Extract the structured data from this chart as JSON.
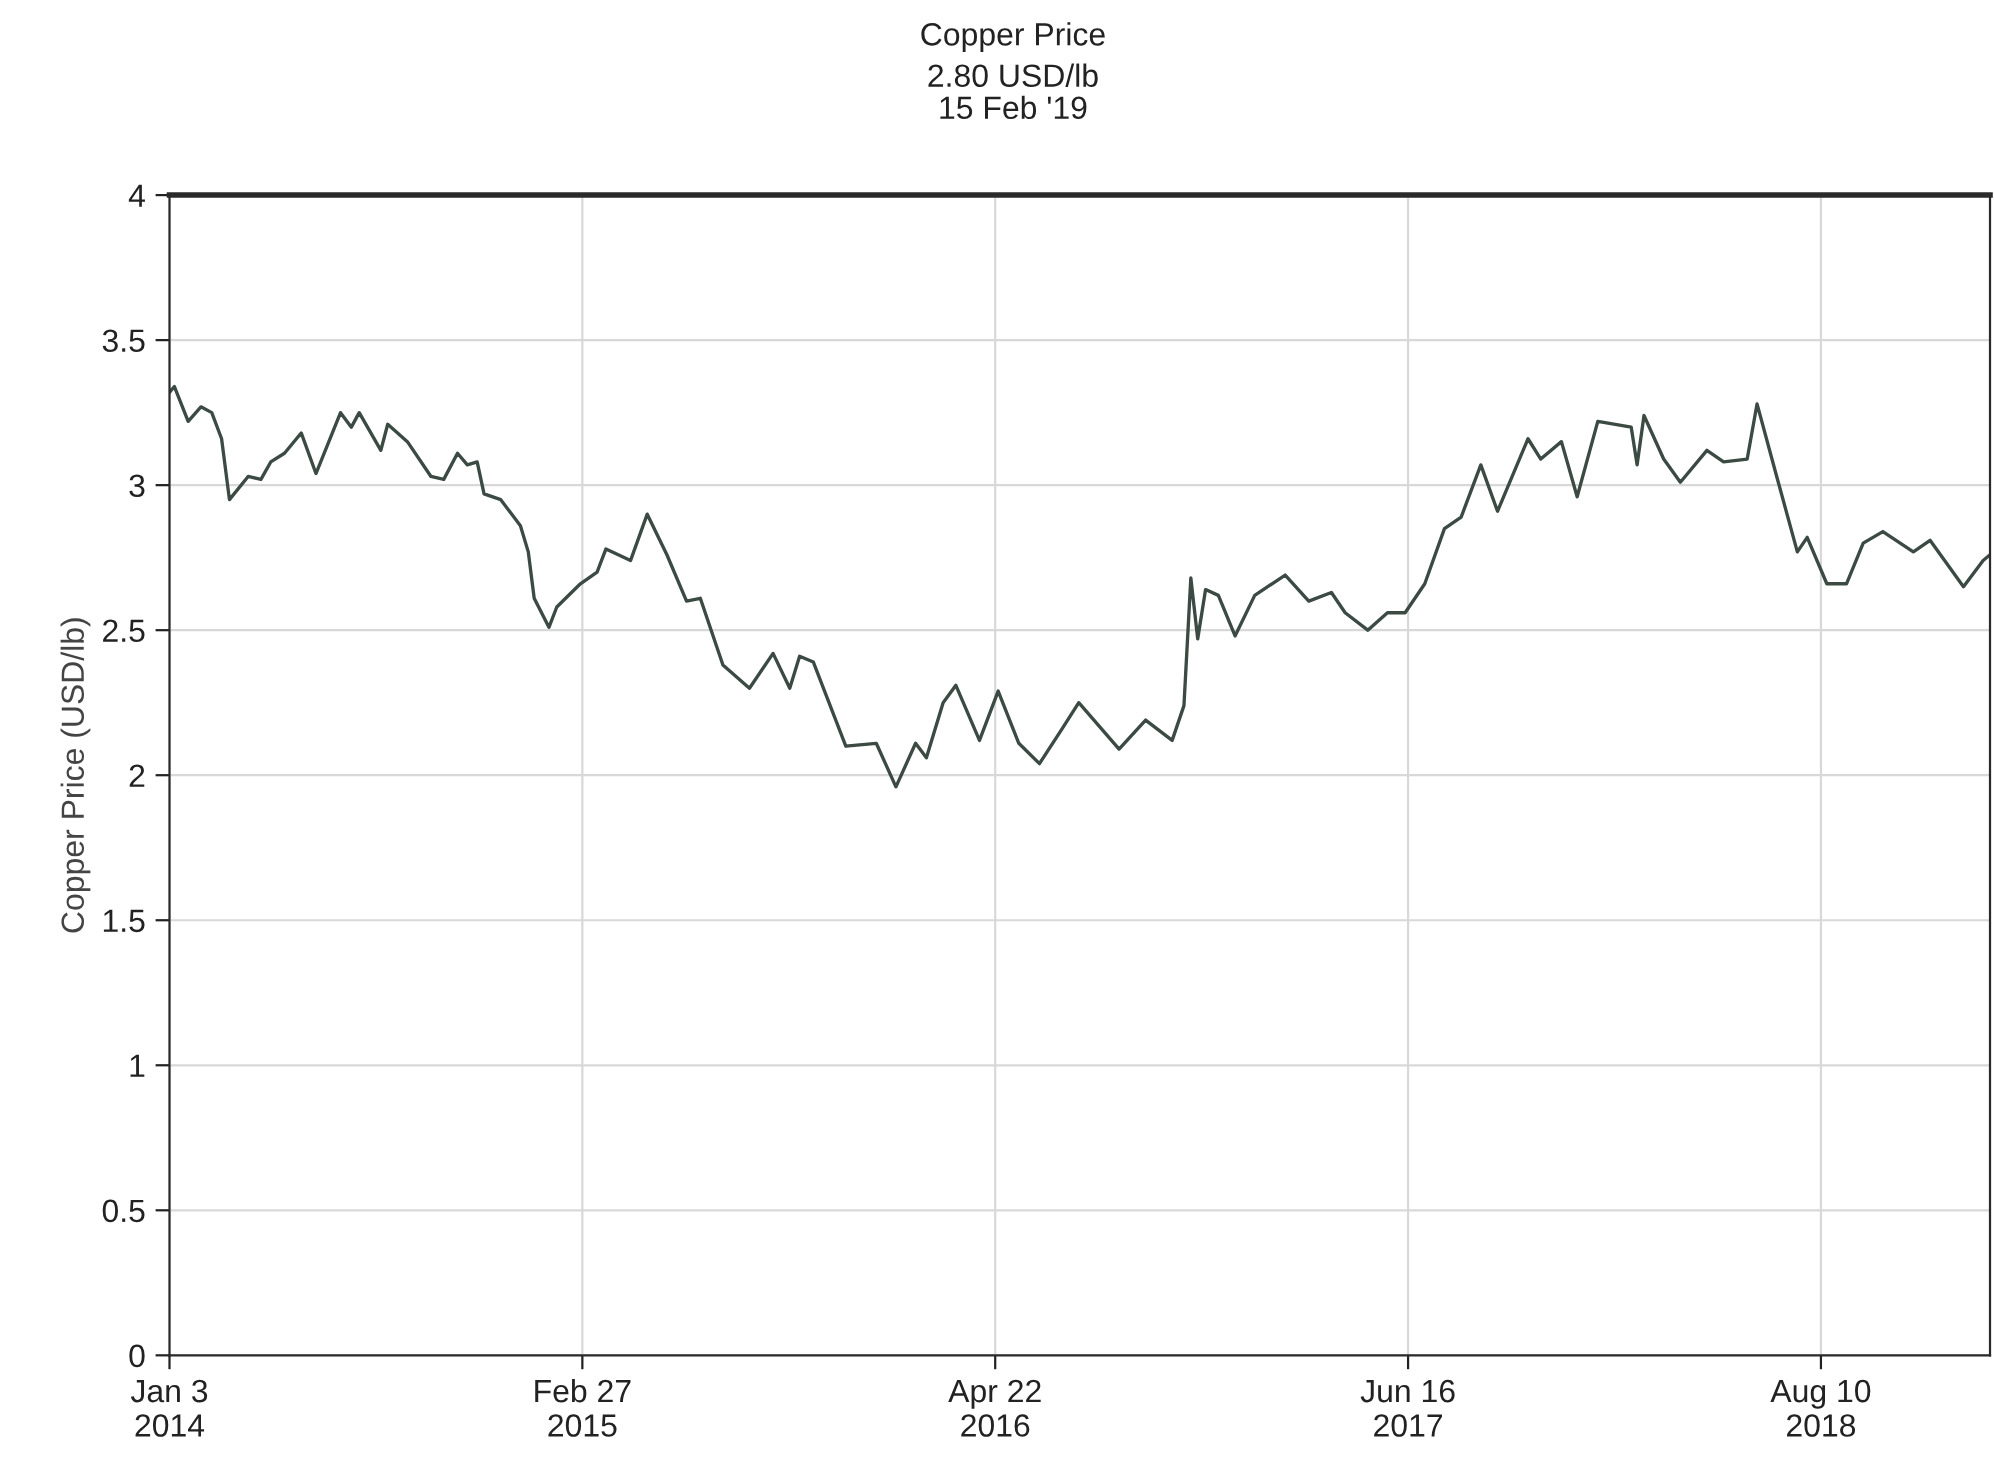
{
  "chart_data": {
    "type": "line",
    "title": "Copper Price",
    "subtitle": "2.80 USD/lb\n15 Feb '19",
    "ylabel": "Copper Price (USD/lb)",
    "x": [
      "2014-01-03",
      "2014-01-08",
      "2014-01-22",
      "2014-02-04",
      "2014-02-15",
      "2014-02-25",
      "2014-03-05",
      "2014-03-24",
      "2014-04-06",
      "2014-04-16",
      "2014-04-30",
      "2014-05-17",
      "2014-06-01",
      "2014-06-26",
      "2014-07-07",
      "2014-07-15",
      "2014-08-06",
      "2014-08-13",
      "2014-09-02",
      "2014-09-26",
      "2014-10-09",
      "2014-10-23",
      "2014-11-02",
      "2014-11-12",
      "2014-11-19",
      "2014-12-06",
      "2014-12-26",
      "2015-01-03",
      "2015-01-09",
      "2015-01-24",
      "2015-02-01",
      "2015-02-25",
      "2015-03-14",
      "2015-03-23",
      "2015-04-17",
      "2015-05-04",
      "2015-05-24",
      "2015-06-13",
      "2015-06-27",
      "2015-07-20",
      "2015-08-16",
      "2015-09-09",
      "2015-09-26",
      "2015-10-06",
      "2015-10-20",
      "2015-11-22",
      "2015-12-23",
      "2016-01-12",
      "2016-02-01",
      "2016-02-12",
      "2016-02-29",
      "2016-03-13",
      "2016-04-06",
      "2016-04-25",
      "2016-05-16",
      "2016-06-06",
      "2016-06-29",
      "2016-07-16",
      "2016-08-26",
      "2016-09-22",
      "2016-10-19",
      "2016-10-31",
      "2016-11-07",
      "2016-11-14",
      "2016-11-22",
      "2016-12-05",
      "2016-12-22",
      "2017-01-11",
      "2017-02-11",
      "2017-03-07",
      "2017-03-30",
      "2017-04-13",
      "2017-05-06",
      "2017-05-26",
      "2017-06-13",
      "2017-07-03",
      "2017-07-23",
      "2017-08-09",
      "2017-08-29",
      "2017-09-15",
      "2017-10-16",
      "2017-10-29",
      "2017-11-19",
      "2017-12-05",
      "2017-12-26",
      "2018-01-29",
      "2018-02-04",
      "2018-02-11",
      "2018-03-03",
      "2018-03-20",
      "2018-04-16",
      "2018-05-03",
      "2018-05-27",
      "2018-06-06",
      "2018-06-26",
      "2018-07-17",
      "2018-07-27",
      "2018-08-16",
      "2018-09-05",
      "2018-09-22",
      "2018-10-12",
      "2018-11-12",
      "2018-11-29",
      "2019-01-02",
      "2019-01-22",
      "2019-01-29"
    ],
    "series": [
      {
        "color": "#3b4a42",
        "values": [
          3.32,
          3.34,
          3.22,
          3.27,
          3.25,
          3.16,
          2.95,
          3.03,
          3.02,
          3.08,
          3.11,
          3.18,
          3.04,
          3.25,
          3.2,
          3.25,
          3.12,
          3.21,
          3.15,
          3.03,
          3.02,
          3.11,
          3.07,
          3.08,
          2.97,
          2.95,
          2.86,
          2.77,
          2.61,
          2.51,
          2.58,
          2.66,
          2.7,
          2.78,
          2.74,
          2.9,
          2.76,
          2.6,
          2.61,
          2.38,
          2.3,
          2.42,
          2.3,
          2.41,
          2.39,
          2.1,
          2.11,
          1.96,
          2.11,
          2.06,
          2.25,
          2.31,
          2.12,
          2.29,
          2.11,
          2.04,
          2.16,
          2.25,
          2.09,
          2.19,
          2.12,
          2.24,
          2.68,
          2.47,
          2.64,
          2.62,
          2.48,
          2.62,
          2.69,
          2.6,
          2.63,
          2.56,
          2.5,
          2.56,
          2.56,
          2.66,
          2.85,
          2.89,
          3.07,
          2.91,
          3.16,
          3.09,
          3.15,
          2.96,
          3.22,
          3.2,
          3.07,
          3.24,
          3.09,
          3.01,
          3.12,
          3.08,
          3.09,
          3.28,
          3.03,
          2.77,
          2.82,
          2.66,
          2.66,
          2.8,
          2.84,
          2.77,
          2.81,
          2.65,
          2.74,
          2.76
        ]
      }
    ],
    "xlim": [
      "2014-01-03",
      "2019-01-29"
    ],
    "xticks": [
      {
        "value": "2014-01-03",
        "label": "Jan 3\n2014"
      },
      {
        "value": "2015-02-27",
        "label": "Feb 27\n2015"
      },
      {
        "value": "2016-04-22",
        "label": "Apr 22\n2016"
      },
      {
        "value": "2017-06-16",
        "label": "Jun 16\n2017"
      },
      {
        "value": "2018-08-10",
        "label": "Aug 10\n2018"
      }
    ],
    "ylim": [
      0,
      4
    ],
    "yticks": [
      0,
      0.5,
      1,
      1.5,
      2,
      2.5,
      3,
      3.5,
      4
    ],
    "grid": true,
    "line_style": "solid",
    "marker": "none"
  }
}
